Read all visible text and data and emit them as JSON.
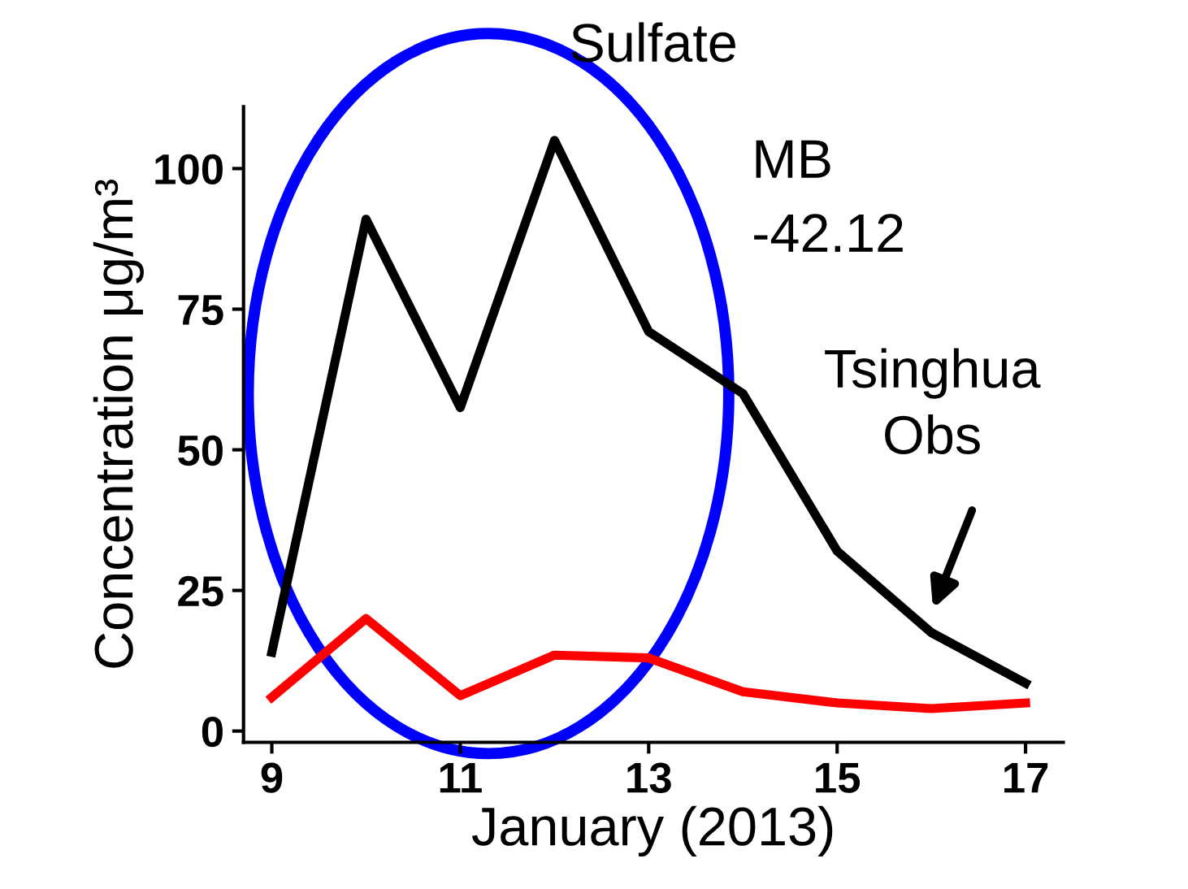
{
  "chart_data": {
    "type": "line",
    "title": "Sulfate",
    "xlabel": "January (2013)",
    "ylabel": "Concentration μg/m³",
    "x": [
      9,
      10,
      11,
      12,
      13,
      14,
      15,
      16,
      17
    ],
    "series": [
      {
        "color": "#000000",
        "values": [
          14,
          91,
          57.5,
          105,
          71,
          60,
          32,
          17.5,
          8.5
        ]
      },
      {
        "color": "#ff0000",
        "values": [
          6,
          20,
          6.3,
          13.5,
          13,
          7,
          5,
          4,
          5
        ]
      }
    ],
    "xlim": [
      8.7,
      17.4
    ],
    "ylim": [
      -2,
      111
    ],
    "xticks": [
      9,
      11,
      13,
      15,
      17
    ],
    "yticks": [
      0,
      25,
      50,
      75,
      100
    ],
    "grid": false,
    "legend": false,
    "marker": "none",
    "line_style": "solid",
    "annotations": [
      "MB\n-42.12",
      "Tsinghua\nObs"
    ]
  }
}
